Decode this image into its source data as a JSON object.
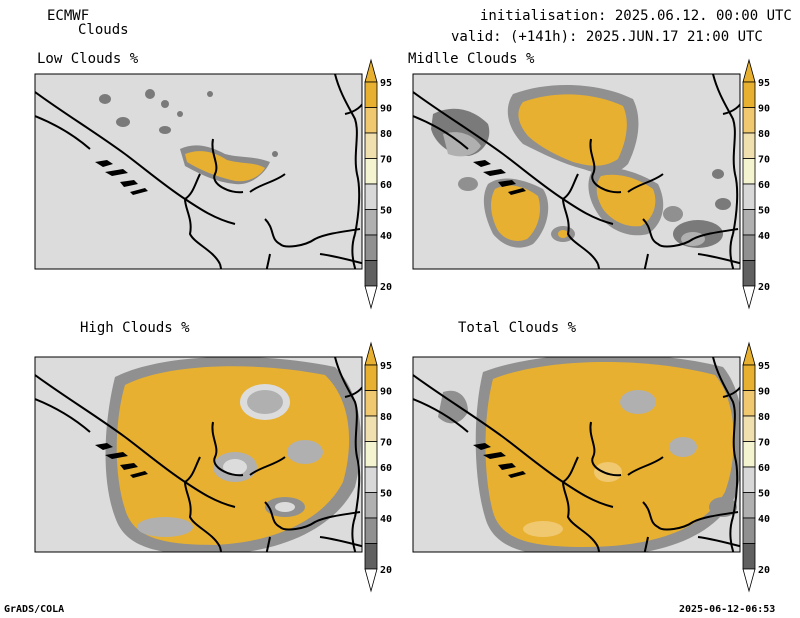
{
  "header": {
    "model": "ECMWF",
    "product": "Clouds",
    "init_line": "initialisation: 2025.06.12. 00:00 UTC",
    "valid_line": "valid: (+141h): 2025.JUN.17 21:00 UTC"
  },
  "panels": [
    {
      "title": "Low Clouds %"
    },
    {
      "title": "Midlle Clouds %"
    },
    {
      "title": "High Clouds %"
    },
    {
      "title": "Total Clouds %"
    }
  ],
  "colorbar": {
    "labels": [
      "95",
      "90",
      "80",
      "70",
      "60",
      "50",
      "40",
      "20"
    ],
    "colors": [
      "#e8b030",
      "#f0c870",
      "#f0e0b0",
      "#f4f4d0",
      "#d8d8d8",
      "#b0b0b0",
      "#909090",
      "#606060"
    ]
  },
  "footer": {
    "left": "GrADS/COLA",
    "right": "2025-06-12-06:53"
  }
}
